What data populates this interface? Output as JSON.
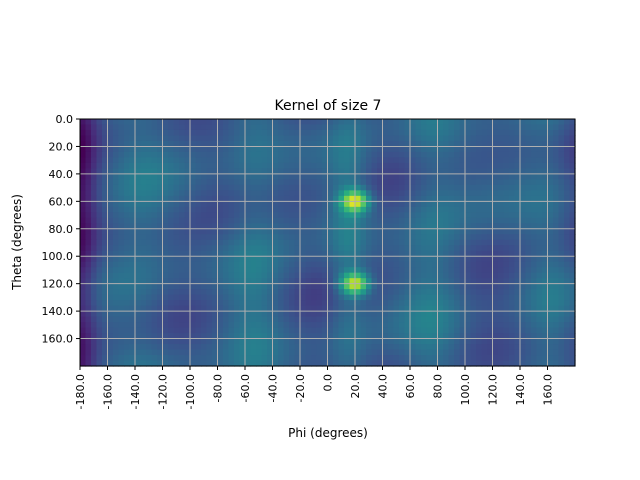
{
  "chart_data": {
    "type": "heatmap",
    "title": "Kernel of size 7",
    "xlabel": "Phi (degrees)",
    "ylabel": "Theta (degrees)",
    "xlim": [
      -180,
      180
    ],
    "ylim": [
      180,
      0
    ],
    "x_ticks": [
      "-180.0",
      "-160.0",
      "-140.0",
      "-120.0",
      "-100.0",
      "-80.0",
      "-60.0",
      "-40.0",
      "-20.0",
      "0.0",
      "20.0",
      "40.0",
      "60.0",
      "80.0",
      "100.0",
      "120.0",
      "140.0",
      "160.0"
    ],
    "y_ticks": [
      "0.0",
      "20.0",
      "40.0",
      "60.0",
      "80.0",
      "100.0",
      "120.0",
      "140.0",
      "160.0"
    ],
    "grid": true,
    "colormap": "viridis",
    "value_range": [
      0,
      1
    ],
    "hotspots": [
      {
        "phi": 20,
        "theta": 60,
        "intensity": 1.0
      },
      {
        "phi": 20,
        "theta": 120,
        "intensity": 1.0
      }
    ],
    "dark_edge_phi": -180
  }
}
